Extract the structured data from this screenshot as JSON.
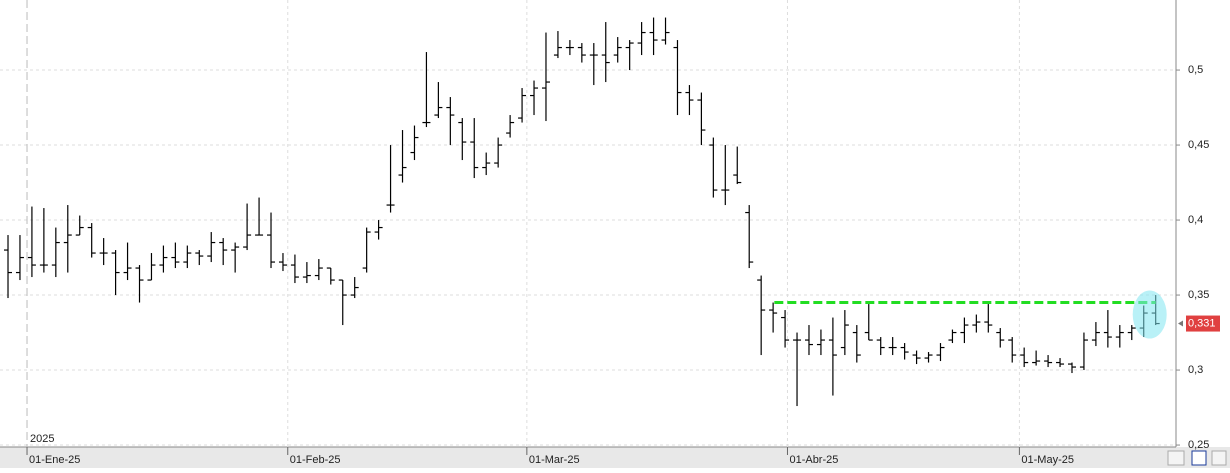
{
  "chart_data": {
    "type": "ohlc",
    "color": "#000000",
    "open": [
      0.38,
      0.365,
      0.375,
      0.37,
      0.37,
      0.385,
      0.39,
      0.395,
      0.378,
      0.378,
      0.365,
      0.368,
      0.36,
      0.37,
      0.375,
      0.372,
      0.378,
      0.376,
      0.385,
      0.38,
      0.382,
      0.39,
      0.39,
      0.372,
      0.37,
      0.362,
      0.363,
      0.368,
      0.36,
      0.35,
      0.368,
      0.392,
      0.41,
      0.43,
      0.445,
      0.465,
      0.47,
      0.475,
      0.465,
      0.452,
      0.435,
      0.438,
      0.458,
      0.468,
      0.483,
      0.488,
      0.51,
      0.515,
      0.515,
      0.51,
      0.51,
      0.51,
      0.515,
      0.518,
      0.525,
      0.52,
      0.515,
      0.485,
      0.48,
      0.45,
      0.42,
      0.43,
      0.405,
      0.36,
      0.34,
      0.335,
      0.32,
      0.32,
      0.317,
      0.32,
      0.315,
      0.325,
      0.325,
      0.32,
      0.315,
      0.315,
      0.31,
      0.308,
      0.31,
      0.32,
      0.325,
      0.33,
      0.332,
      0.325,
      0.32,
      0.31,
      0.305,
      0.306,
      0.305,
      0.304,
      0.302,
      0.32,
      0.325,
      0.322,
      0.325,
      0.328,
      0.338
    ],
    "high": [
      0.39,
      0.39,
      0.409,
      0.408,
      0.395,
      0.41,
      0.403,
      0.398,
      0.388,
      0.38,
      0.385,
      0.37,
      0.378,
      0.383,
      0.385,
      0.383,
      0.38,
      0.392,
      0.388,
      0.385,
      0.411,
      0.415,
      0.405,
      0.378,
      0.377,
      0.372,
      0.374,
      0.368,
      0.36,
      0.362,
      0.395,
      0.4,
      0.45,
      0.46,
      0.463,
      0.512,
      0.492,
      0.482,
      0.468,
      0.468,
      0.445,
      0.455,
      0.47,
      0.488,
      0.493,
      0.525,
      0.526,
      0.52,
      0.518,
      0.518,
      0.532,
      0.522,
      0.52,
      0.532,
      0.535,
      0.535,
      0.52,
      0.49,
      0.485,
      0.455,
      0.45,
      0.449,
      0.41,
      0.363,
      0.345,
      0.34,
      0.325,
      0.33,
      0.327,
      0.335,
      0.34,
      0.33,
      0.344,
      0.322,
      0.322,
      0.318,
      0.313,
      0.312,
      0.318,
      0.327,
      0.335,
      0.337,
      0.344,
      0.328,
      0.322,
      0.315,
      0.313,
      0.31,
      0.308,
      0.305,
      0.325,
      0.332,
      0.34,
      0.33,
      0.33,
      0.343,
      0.35
    ],
    "low": [
      0.348,
      0.36,
      0.362,
      0.365,
      0.362,
      0.365,
      0.39,
      0.375,
      0.37,
      0.35,
      0.36,
      0.345,
      0.36,
      0.365,
      0.368,
      0.368,
      0.37,
      0.372,
      0.37,
      0.365,
      0.38,
      0.39,
      0.368,
      0.366,
      0.358,
      0.358,
      0.36,
      0.357,
      0.33,
      0.348,
      0.365,
      0.387,
      0.405,
      0.425,
      0.44,
      0.462,
      0.468,
      0.45,
      0.44,
      0.428,
      0.43,
      0.435,
      0.455,
      0.465,
      0.47,
      0.466,
      0.508,
      0.51,
      0.505,
      0.49,
      0.492,
      0.505,
      0.5,
      0.51,
      0.51,
      0.517,
      0.47,
      0.47,
      0.45,
      0.415,
      0.41,
      0.424,
      0.368,
      0.31,
      0.325,
      0.315,
      0.276,
      0.31,
      0.31,
      0.283,
      0.31,
      0.305,
      0.32,
      0.31,
      0.31,
      0.307,
      0.304,
      0.305,
      0.306,
      0.318,
      0.318,
      0.325,
      0.325,
      0.315,
      0.305,
      0.302,
      0.303,
      0.302,
      0.302,
      0.298,
      0.3,
      0.316,
      0.315,
      0.315,
      0.32,
      0.322,
      0.33
    ],
    "close": [
      0.365,
      0.375,
      0.37,
      0.37,
      0.385,
      0.39,
      0.395,
      0.378,
      0.378,
      0.365,
      0.368,
      0.36,
      0.37,
      0.375,
      0.372,
      0.378,
      0.376,
      0.385,
      0.38,
      0.382,
      0.39,
      0.39,
      0.372,
      0.37,
      0.362,
      0.363,
      0.368,
      0.36,
      0.35,
      0.355,
      0.392,
      0.395,
      0.41,
      0.435,
      0.455,
      0.465,
      0.475,
      0.47,
      0.452,
      0.435,
      0.438,
      0.45,
      0.465,
      0.483,
      0.488,
      0.492,
      0.515,
      0.515,
      0.51,
      0.51,
      0.505,
      0.515,
      0.518,
      0.525,
      0.52,
      0.525,
      0.485,
      0.48,
      0.46,
      0.42,
      0.42,
      0.425,
      0.372,
      0.34,
      0.338,
      0.32,
      0.32,
      0.317,
      0.32,
      0.31,
      0.33,
      0.31,
      0.32,
      0.315,
      0.315,
      0.312,
      0.308,
      0.31,
      0.315,
      0.325,
      0.33,
      0.332,
      0.33,
      0.32,
      0.31,
      0.305,
      0.306,
      0.305,
      0.304,
      0.302,
      0.32,
      0.325,
      0.322,
      0.325,
      0.328,
      0.338,
      0.331
    ],
    "xlim": [
      -0.67,
      97.7
    ],
    "xticks": [
      {
        "value": 1.59,
        "label": "01-Ene-25"
      },
      {
        "value": 23.4,
        "label": "01-Feb-25"
      },
      {
        "value": 43.4,
        "label": "01-Mar-25"
      },
      {
        "value": 65.2,
        "label": "01-Abr-25"
      },
      {
        "value": 84.6,
        "label": "01-May-25"
      }
    ],
    "ylim": [
      0.2487,
      0.5467
    ],
    "yticks": [
      {
        "value": 0.25,
        "label": "0,25"
      },
      {
        "value": 0.3,
        "label": "0,3"
      },
      {
        "value": 0.35,
        "label": "0,35"
      },
      {
        "value": 0.4,
        "label": "0,4"
      },
      {
        "value": 0.45,
        "label": "0,45"
      },
      {
        "value": 0.5,
        "label": "0,5"
      }
    ],
    "year_label": "2025",
    "resistance": {
      "value": 0.345,
      "from": 64.1,
      "to": 96,
      "color": "#22dd22"
    },
    "last_price": {
      "value": 0.331,
      "label": "0,331"
    },
    "grid": true
  }
}
